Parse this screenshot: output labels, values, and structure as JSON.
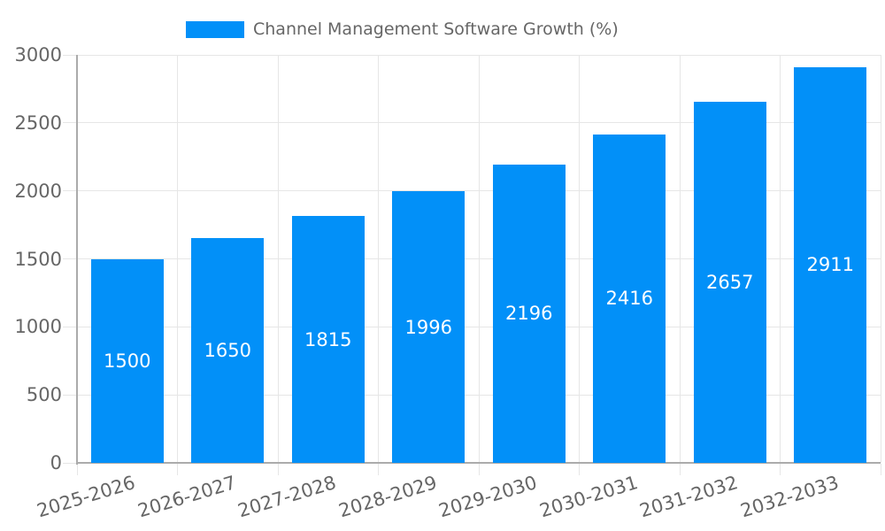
{
  "chart_data": {
    "type": "bar",
    "title": "Channel Management Software Growth (%)",
    "categories": [
      "2025-2026",
      "2026-2027",
      "2027-2028",
      "2028-2029",
      "2029-2030",
      "2030-2031",
      "2031-2032",
      "2032-2033"
    ],
    "series": [
      {
        "name": "Channel Management Software Growth (%)",
        "values": [
          1500,
          1650,
          1815,
          1996,
          2196,
          2416,
          2657,
          2911
        ]
      }
    ],
    "value_labels": [
      "1500",
      "1650",
      "1815",
      "1996",
      "2196",
      "2416",
      "2657",
      "2911"
    ],
    "xlabel": "",
    "ylabel": "",
    "ylim": [
      0,
      3000
    ],
    "yticks": [
      0,
      500,
      1000,
      1500,
      2000,
      2500,
      3000
    ],
    "grid": true,
    "legend_position": "top",
    "colors": {
      "bar": "#0290f8",
      "grid": "#e6e6e6",
      "axis": "#ababab",
      "tick_text": "#666666",
      "value_text": "#ffffff"
    }
  }
}
